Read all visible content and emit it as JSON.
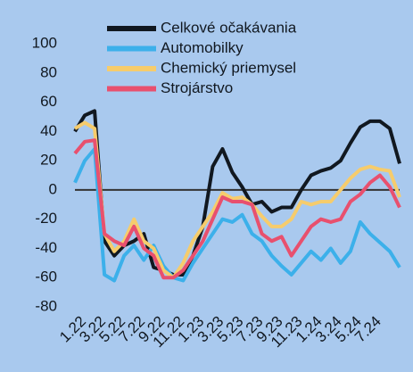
{
  "chart_data": {
    "type": "line",
    "categories": [
      "1.22",
      null,
      "3.22",
      null,
      "5.22",
      null,
      "7.22",
      null,
      "9.22",
      null,
      "11.22",
      null,
      "1.23",
      null,
      "3.23",
      null,
      "5.23",
      null,
      "7.23",
      null,
      "9.23",
      null,
      "11.23",
      null,
      "1.24",
      null,
      "3.24",
      null,
      "5.24",
      null,
      "7.24",
      null,
      null,
      null
    ],
    "series": [
      {
        "name": "Celkové očakávania",
        "color": "#111820",
        "values": [
          40,
          51,
          54,
          -35,
          -45,
          -38,
          -35,
          -30,
          -53,
          -55,
          -58,
          -58,
          -45,
          -25,
          16,
          28,
          12,
          2,
          -10,
          -8,
          -15,
          -12,
          -12,
          0,
          10,
          13,
          15,
          20,
          32,
          43,
          47,
          47,
          42,
          18
        ]
      },
      {
        "name": "Automobilky",
        "color": "#3cb0ea",
        "values": [
          5,
          20,
          28,
          -58,
          -62,
          -45,
          -38,
          -48,
          -38,
          -52,
          -60,
          -62,
          -50,
          -40,
          -30,
          -20,
          -22,
          -17,
          -30,
          -35,
          -45,
          -52,
          -58,
          -50,
          -42,
          -48,
          -40,
          -50,
          -42,
          -22,
          -30,
          -36,
          -42,
          -53
        ]
      },
      {
        "name": "Chemický priemysel",
        "color": "#f6cc6c",
        "values": [
          42,
          46,
          42,
          -30,
          -42,
          -35,
          -20,
          -35,
          -40,
          -55,
          -60,
          -50,
          -35,
          -25,
          -15,
          -2,
          -6,
          -5,
          -10,
          -18,
          -25,
          -25,
          -20,
          -8,
          -10,
          -8,
          -8,
          0,
          8,
          14,
          16,
          14,
          13,
          -5
        ]
      },
      {
        "name": "Strojárstvo",
        "color": "#e8506e",
        "values": [
          25,
          33,
          34,
          -30,
          -35,
          -38,
          -25,
          -40,
          -45,
          -60,
          -60,
          -55,
          -45,
          -35,
          -20,
          -5,
          -8,
          -8,
          -10,
          -30,
          -35,
          -32,
          -45,
          -35,
          -25,
          -20,
          -22,
          -20,
          -8,
          -3,
          5,
          10,
          2,
          -12
        ]
      }
    ],
    "ylim": [
      -80,
      100
    ],
    "yticks": [
      -80,
      -60,
      -40,
      -20,
      0,
      20,
      40,
      60,
      80,
      100
    ]
  }
}
